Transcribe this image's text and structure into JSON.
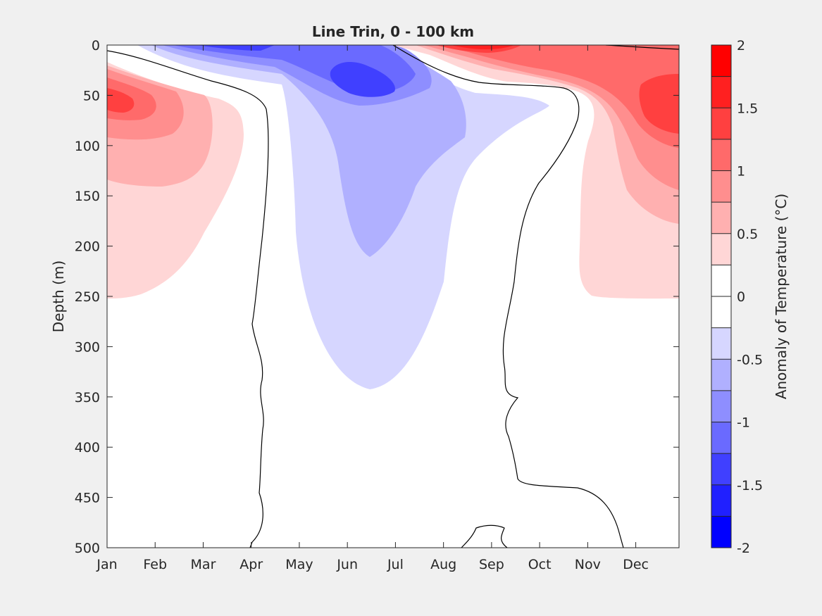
{
  "chart_data": {
    "type": "heatmap",
    "subtype": "filled-contour",
    "title": "Line Trin, 0 - 100 km",
    "xlabel": "",
    "ylabel": "Depth (m)",
    "x_tick_labels": [
      "Jan",
      "Feb",
      "Mar",
      "Apr",
      "May",
      "Jun",
      "Jul",
      "Aug",
      "Sep",
      "Oct",
      "Nov",
      "Dec"
    ],
    "x_tick_values": [
      1,
      2,
      3,
      4,
      5,
      6,
      7,
      8,
      9,
      10,
      11,
      12
    ],
    "xlim": [
      1,
      12.9
    ],
    "ylim": [
      500,
      0
    ],
    "y_reversed": true,
    "y_ticks": [
      0,
      50,
      100,
      150,
      200,
      250,
      300,
      350,
      400,
      450,
      500
    ],
    "grid": false,
    "colorbar": {
      "label": "Anomaly of Temperature (°C)",
      "position": "right",
      "range": [
        -2,
        2
      ],
      "step": 0.25,
      "tick_values": [
        -2,
        -1.5,
        -1,
        -0.5,
        0,
        0.5,
        1,
        1.5,
        2
      ],
      "tick_labels": [
        "-2",
        "-1.5",
        "-1",
        "-0.5",
        "0",
        "0.5",
        "1",
        "1.5",
        "2"
      ],
      "colors": [
        "#0000ff",
        "#2020ff",
        "#4040ff",
        "#6a6aff",
        "#8e8eff",
        "#b0b0ff",
        "#d6d6ff",
        "#ffffff",
        "#ffffff",
        "#ffd6d6",
        "#ffb0b0",
        "#ff8e8e",
        "#ff6a6a",
        "#ff4040",
        "#ff2020",
        "#ff0000"
      ]
    },
    "features": [
      {
        "kind": "warm-core",
        "month": 1.0,
        "depth": 50,
        "peak_anomaly": 1.25
      },
      {
        "kind": "cold-core",
        "month": 6.2,
        "depth": 40,
        "peak_anomaly": -1.5
      },
      {
        "kind": "warm-surface",
        "month": 9.2,
        "depth": 0,
        "peak_anomaly": 2.0
      },
      {
        "kind": "warm-core",
        "month": 12.9,
        "depth": 50,
        "peak_anomaly": 1.25
      }
    ]
  }
}
